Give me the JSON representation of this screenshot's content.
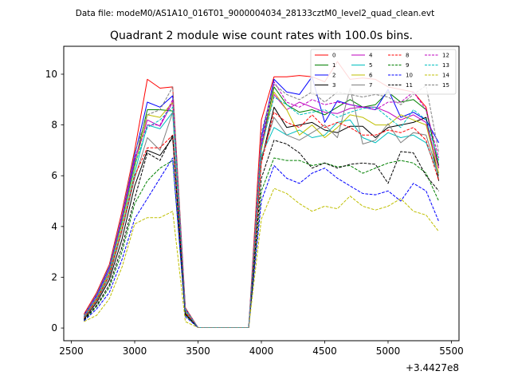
{
  "header_text": "Data file: modeM0/AS1A10_016T01_9000004034_28133cztM0_level2_quad_clean.evt",
  "chart_data": {
    "type": "line",
    "title": "Quadrant 2 module wise count rates with 100.0s bins.",
    "xlabel": "",
    "ylabel": "",
    "x_offset_label": "+3.4427e8",
    "xlim": [
      2440,
      5560
    ],
    "ylim": [
      -0.5,
      11.1
    ],
    "xticks": [
      2500,
      3000,
      3500,
      4000,
      4500,
      5000,
      5500
    ],
    "yticks": [
      0,
      2,
      4,
      6,
      8,
      10
    ],
    "x": [
      2600,
      2700,
      2800,
      2900,
      3000,
      3100,
      3200,
      3300,
      3400,
      3500,
      3600,
      3700,
      3800,
      3900,
      4000,
      4100,
      4200,
      4300,
      4400,
      4500,
      4600,
      4700,
      4800,
      4900,
      5000,
      5100,
      5200,
      5300,
      5400
    ],
    "legend_position": "top-right",
    "series": [
      {
        "name": "0",
        "color": "#ff0000",
        "dash": "solid",
        "values": [
          0.55,
          1.4,
          2.5,
          4.6,
          7.0,
          9.8,
          9.45,
          9.5,
          0.8,
          0.02,
          0.02,
          0.02,
          0.02,
          0.02,
          8.2,
          9.9,
          9.9,
          9.95,
          9.9,
          9.7,
          10.5,
          9.8,
          9.85,
          9.8,
          9.5,
          9.4,
          9.3,
          8.7,
          6.3
        ]
      },
      {
        "name": "1",
        "color": "#008000",
        "dash": "solid",
        "values": [
          0.45,
          1.2,
          2.2,
          4.2,
          6.5,
          8.6,
          8.6,
          8.55,
          0.7,
          0.02,
          0.02,
          0.02,
          0.02,
          0.02,
          7.2,
          9.5,
          8.8,
          8.5,
          8.6,
          8.4,
          8.7,
          9.0,
          8.7,
          8.8,
          9.3,
          8.9,
          9.0,
          8.6,
          6.4
        ]
      },
      {
        "name": "2",
        "color": "#0000ff",
        "dash": "solid",
        "values": [
          0.5,
          1.3,
          2.4,
          4.4,
          6.8,
          8.9,
          8.7,
          9.15,
          0.75,
          0.02,
          0.02,
          0.02,
          0.02,
          0.02,
          7.5,
          9.8,
          9.3,
          9.2,
          9.9,
          8.1,
          8.95,
          8.8,
          8.7,
          8.6,
          9.4,
          8.3,
          8.5,
          8.2,
          7.3
        ]
      },
      {
        "name": "3",
        "color": "#000000",
        "dash": "solid",
        "values": [
          0.35,
          1.0,
          1.9,
          3.5,
          5.6,
          7.0,
          6.8,
          7.5,
          0.55,
          0.02,
          0.02,
          0.02,
          0.02,
          0.02,
          6.6,
          8.7,
          7.9,
          8.0,
          8.1,
          7.8,
          7.7,
          7.95,
          7.95,
          7.5,
          7.9,
          8.0,
          8.1,
          8.3,
          5.8
        ]
      },
      {
        "name": "4",
        "color": "#bf00bf",
        "dash": "solid",
        "values": [
          0.45,
          1.2,
          2.3,
          4.3,
          6.6,
          8.2,
          7.95,
          8.9,
          0.7,
          0.02,
          0.02,
          0.02,
          0.02,
          0.02,
          7.2,
          9.2,
          8.6,
          8.9,
          8.7,
          8.5,
          8.45,
          8.65,
          8.7,
          8.7,
          8.5,
          8.2,
          8.4,
          8.1,
          6.3
        ]
      },
      {
        "name": "5",
        "color": "#00bfbf",
        "dash": "solid",
        "values": [
          0.4,
          1.1,
          2.1,
          3.9,
          6.1,
          8.0,
          7.85,
          8.5,
          0.65,
          0.02,
          0.02,
          0.02,
          0.02,
          0.02,
          6.8,
          7.9,
          7.6,
          7.8,
          7.5,
          7.6,
          8.1,
          8.2,
          7.5,
          7.3,
          7.7,
          7.5,
          7.6,
          7.3,
          6.0
        ]
      },
      {
        "name": "6",
        "color": "#bfbf00",
        "dash": "solid",
        "values": [
          0.42,
          1.15,
          2.2,
          4.1,
          6.3,
          8.4,
          8.3,
          8.9,
          0.68,
          0.02,
          0.02,
          0.02,
          0.02,
          0.02,
          7.0,
          9.3,
          8.6,
          7.6,
          8.0,
          7.5,
          7.9,
          8.4,
          8.3,
          8.0,
          8.0,
          8.4,
          8.2,
          8.0,
          6.1
        ]
      },
      {
        "name": "7",
        "color": "#808080",
        "dash": "solid",
        "values": [
          0.38,
          1.05,
          2.0,
          3.8,
          5.9,
          7.5,
          7.0,
          8.5,
          0.62,
          0.02,
          0.02,
          0.02,
          0.02,
          0.02,
          6.7,
          8.3,
          7.6,
          7.4,
          7.7,
          8.0,
          7.5,
          9.45,
          7.25,
          7.4,
          8.05,
          7.3,
          7.7,
          7.6,
          6.0
        ]
      },
      {
        "name": "8",
        "color": "#ff0000",
        "dash": "dashed",
        "values": [
          0.4,
          1.1,
          2.1,
          3.9,
          6.0,
          7.1,
          7.1,
          7.6,
          0.6,
          0.02,
          0.02,
          0.02,
          0.02,
          0.02,
          6.5,
          8.5,
          8.1,
          7.9,
          8.4,
          7.9,
          8.1,
          7.9,
          7.6,
          7.6,
          7.8,
          7.7,
          7.9,
          7.4,
          5.8
        ]
      },
      {
        "name": "9",
        "color": "#008000",
        "dash": "dashed",
        "values": [
          0.3,
          0.85,
          1.6,
          3.0,
          4.9,
          5.8,
          6.3,
          6.6,
          0.5,
          0.02,
          0.02,
          0.02,
          0.02,
          0.02,
          5.4,
          6.7,
          6.6,
          6.6,
          6.4,
          6.5,
          6.35,
          6.4,
          6.1,
          6.3,
          6.5,
          6.6,
          6.5,
          6.1,
          5.0
        ]
      },
      {
        "name": "10",
        "color": "#0000ff",
        "dash": "dashed",
        "values": [
          0.28,
          0.75,
          1.4,
          2.7,
          4.3,
          5.1,
          5.9,
          6.7,
          0.45,
          0.02,
          0.02,
          0.02,
          0.02,
          0.02,
          5.0,
          6.4,
          5.9,
          5.7,
          6.1,
          6.3,
          5.9,
          5.6,
          5.3,
          5.25,
          5.4,
          5.0,
          5.7,
          5.4,
          4.2
        ]
      },
      {
        "name": "11",
        "color": "#000000",
        "dash": "dashed",
        "values": [
          0.33,
          0.9,
          1.7,
          3.2,
          5.1,
          6.9,
          6.6,
          7.6,
          0.55,
          0.02,
          0.02,
          0.02,
          0.02,
          0.02,
          5.9,
          7.4,
          7.25,
          6.9,
          6.3,
          6.5,
          6.3,
          6.45,
          6.5,
          6.45,
          5.7,
          6.95,
          6.9,
          6.0,
          5.4
        ]
      },
      {
        "name": "12",
        "color": "#bf00bf",
        "dash": "dashed",
        "values": [
          0.45,
          1.25,
          2.3,
          4.4,
          6.7,
          8.0,
          8.0,
          9.0,
          0.72,
          0.02,
          0.02,
          0.02,
          0.02,
          0.02,
          7.3,
          9.7,
          8.9,
          8.7,
          9.0,
          8.8,
          8.9,
          8.8,
          8.7,
          8.6,
          8.9,
          8.9,
          9.3,
          8.6,
          6.7
        ]
      },
      {
        "name": "13",
        "color": "#00bfbf",
        "dash": "dashed",
        "values": [
          0.43,
          1.2,
          2.25,
          4.2,
          6.4,
          7.9,
          8.2,
          8.7,
          0.7,
          0.02,
          0.02,
          0.02,
          0.02,
          0.02,
          7.1,
          9.1,
          8.8,
          8.4,
          8.5,
          8.6,
          8.3,
          8.5,
          8.65,
          8.7,
          8.3,
          7.9,
          8.6,
          8.2,
          6.6
        ]
      },
      {
        "name": "14",
        "color": "#bfbf00",
        "dash": "dashed",
        "values": [
          0.25,
          0.5,
          1.15,
          2.4,
          4.1,
          4.35,
          4.35,
          4.6,
          0.25,
          0.02,
          0.02,
          0.02,
          0.02,
          0.02,
          4.3,
          5.5,
          5.3,
          4.9,
          4.6,
          4.8,
          4.7,
          5.2,
          4.8,
          4.65,
          4.8,
          5.1,
          4.6,
          4.45,
          3.8
        ]
      },
      {
        "name": "15",
        "color": "#808080",
        "dash": "dashed",
        "values": [
          0.5,
          1.35,
          2.45,
          4.5,
          6.9,
          8.4,
          8.6,
          9.5,
          0.78,
          0.02,
          0.02,
          0.02,
          0.02,
          0.02,
          7.7,
          9.6,
          9.2,
          9.0,
          9.3,
          8.9,
          9.3,
          9.2,
          9.1,
          9.2,
          9.1,
          8.8,
          9.2,
          9.55,
          6.9
        ]
      }
    ]
  }
}
